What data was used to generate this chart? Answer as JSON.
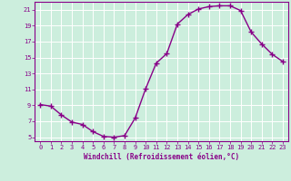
{
  "x": [
    0,
    1,
    2,
    3,
    4,
    5,
    6,
    7,
    8,
    9,
    10,
    11,
    12,
    13,
    14,
    15,
    16,
    17,
    18,
    19,
    20,
    21,
    22,
    23
  ],
  "y": [
    9.1,
    8.9,
    7.8,
    6.9,
    6.6,
    5.7,
    5.1,
    5.0,
    5.2,
    7.4,
    11.1,
    14.3,
    15.5,
    19.2,
    20.4,
    21.1,
    21.4,
    21.5,
    21.5,
    20.9,
    18.2,
    16.7,
    15.4,
    14.5
  ],
  "line_color": "#880088",
  "marker": "+",
  "background_color": "#cceedd",
  "grid_color": "#aaddcc",
  "xlabel": "Windchill (Refroidissement éolien,°C)",
  "xlabel_color": "#880088",
  "tick_color": "#880088",
  "spine_color": "#880088",
  "xlim": [
    -0.5,
    23.5
  ],
  "ylim": [
    4.5,
    22.0
  ],
  "yticks": [
    5,
    7,
    9,
    11,
    13,
    15,
    17,
    19,
    21
  ],
  "xticks": [
    0,
    1,
    2,
    3,
    4,
    5,
    6,
    7,
    8,
    9,
    10,
    11,
    12,
    13,
    14,
    15,
    16,
    17,
    18,
    19,
    20,
    21,
    22,
    23
  ],
  "markersize": 4,
  "linewidth": 1.0,
  "tick_fontsize": 5,
  "xlabel_fontsize": 5.5
}
